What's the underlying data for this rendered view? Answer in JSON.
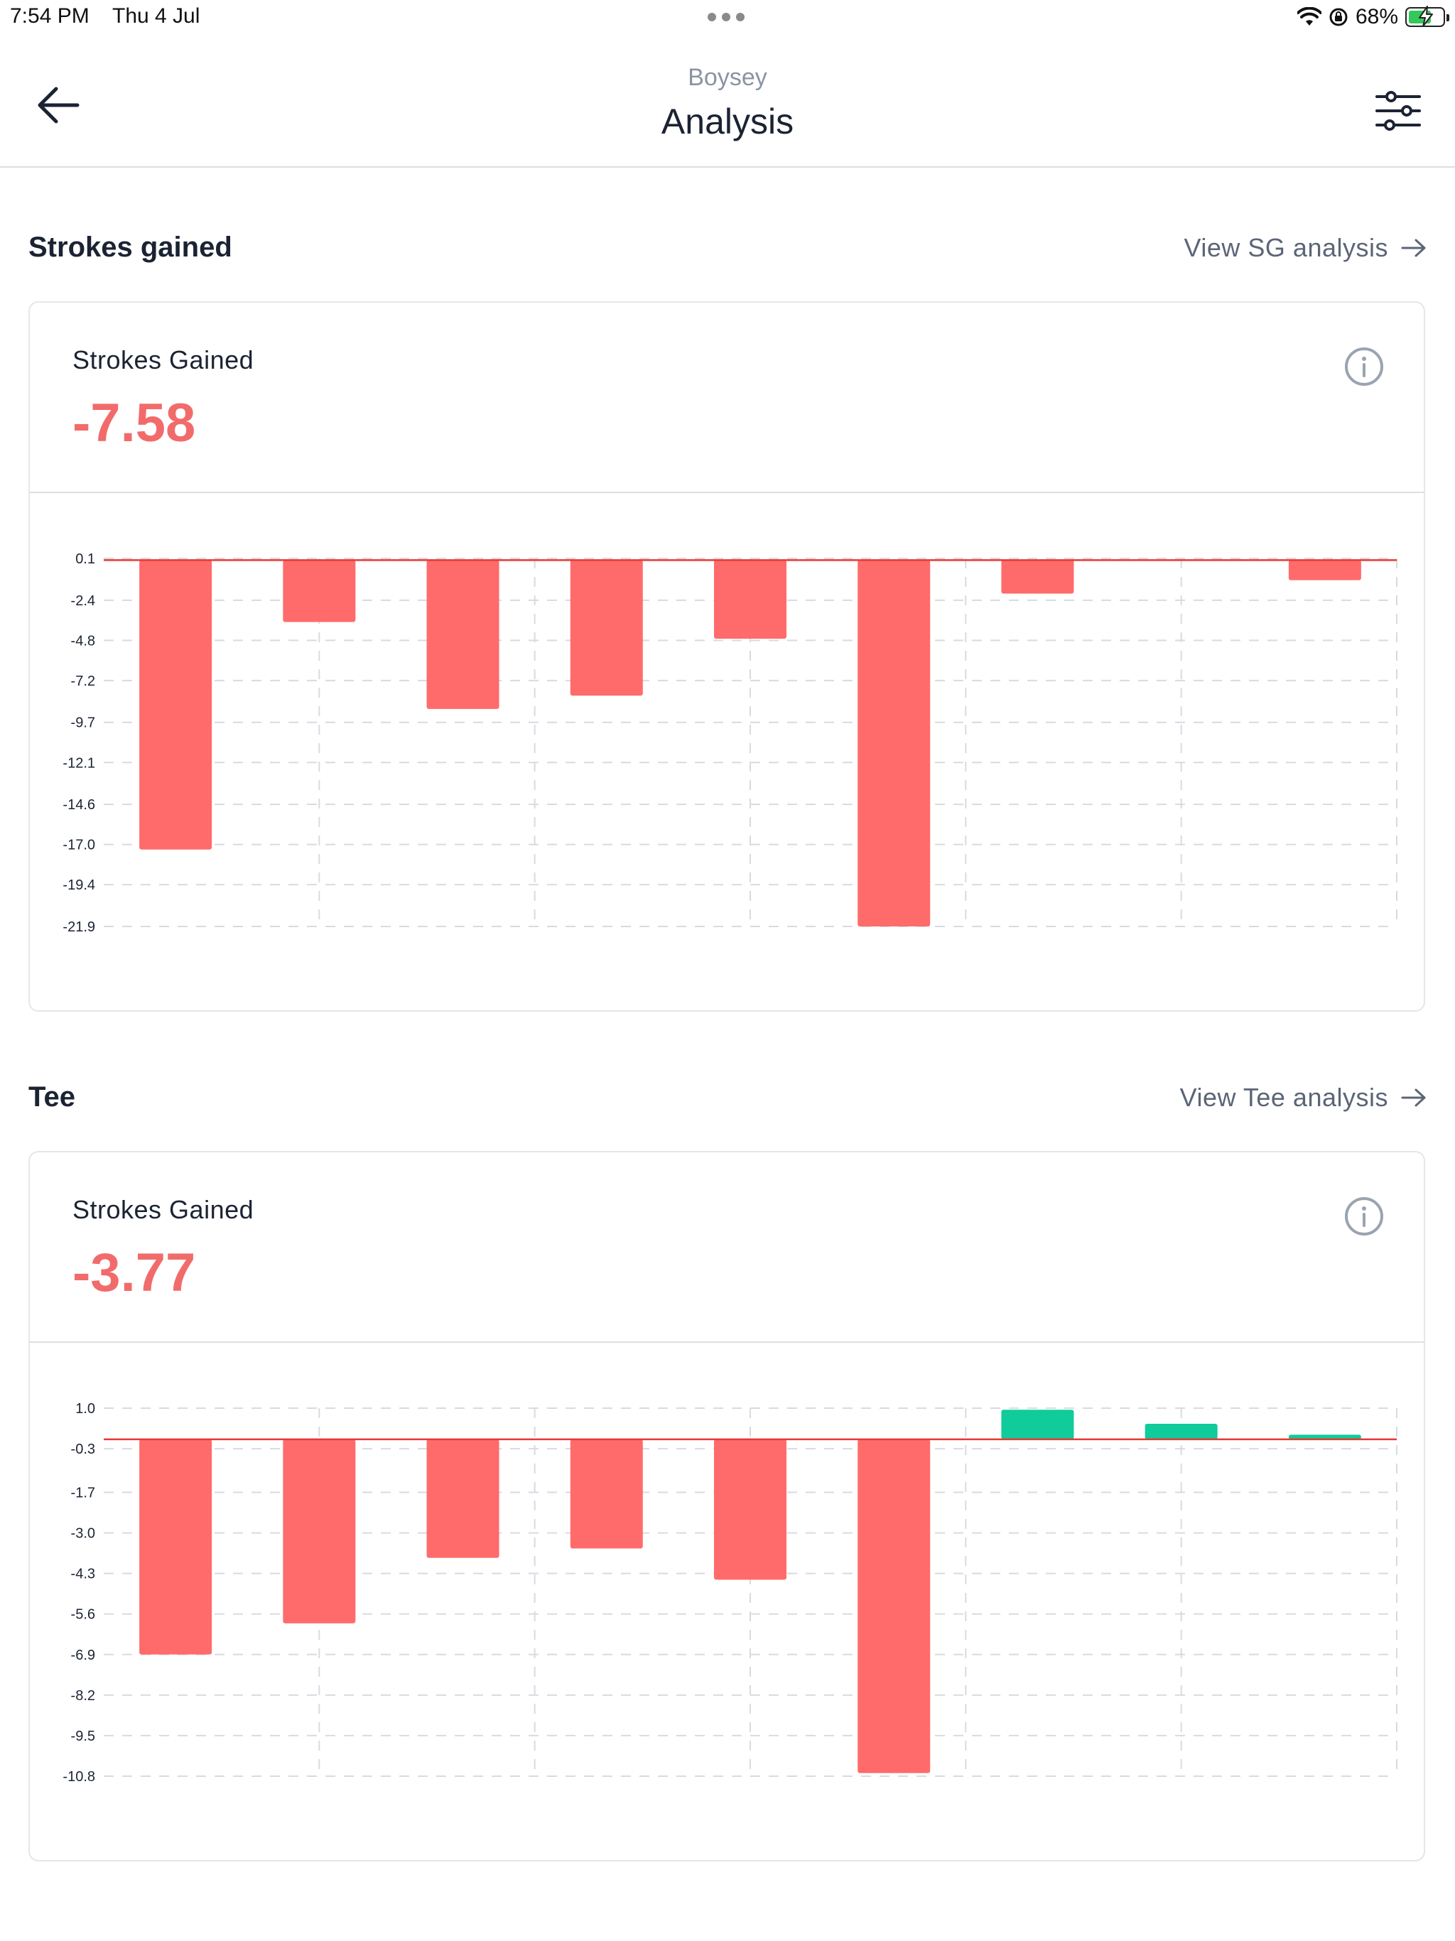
{
  "status_bar": {
    "time": "7:54 PM",
    "date": "Thu 4 Jul",
    "battery_percent": "68%",
    "battery_level": 0.68,
    "icons": [
      "wifi-icon",
      "orientation-lock-icon",
      "battery-charging-icon"
    ]
  },
  "header": {
    "subtitle": "Boysey",
    "title": "Analysis",
    "back_icon": "arrow-left-icon",
    "filter_icon": "sliders-icon"
  },
  "colors": {
    "negative": "#ff6b6b",
    "positive": "#0fcc9a",
    "zero_line": "#e53935",
    "grid": "#d7dbe1",
    "value_text": "#f26b6b"
  },
  "sections": [
    {
      "title": "Strokes gained",
      "link_label": "View SG analysis",
      "metric_label": "Strokes Gained",
      "metric_value": "-7.58"
    },
    {
      "title": "Tee",
      "link_label": "View Tee analysis",
      "metric_label": "Strokes Gained",
      "metric_value": "-3.77"
    }
  ],
  "chart_data": [
    {
      "type": "bar",
      "title": "",
      "xlabel": "",
      "ylabel": "",
      "ylim": [
        -21.9,
        0.1
      ],
      "y_ticks": [
        "0.1",
        "-2.4",
        "-4.8",
        "-7.2",
        "-9.7",
        "-12.1",
        "-14.6",
        "-17.0",
        "-19.4",
        "-21.9"
      ],
      "y_tick_values": [
        0.1,
        -2.4,
        -4.8,
        -7.2,
        -9.7,
        -12.1,
        -14.6,
        -17.0,
        -19.4,
        -21.9
      ],
      "categories": [
        "",
        "",
        "",
        "",
        "",
        "",
        "",
        "",
        ""
      ],
      "values": [
        -17.3,
        -3.7,
        -8.9,
        -8.1,
        -4.7,
        -21.9,
        -2.0,
        0.0,
        -1.2
      ],
      "grid": true
    },
    {
      "type": "bar",
      "title": "",
      "xlabel": "",
      "ylabel": "",
      "ylim": [
        -10.8,
        1.0
      ],
      "y_ticks": [
        "1.0",
        "-0.3",
        "-1.7",
        "-3.0",
        "-4.3",
        "-5.6",
        "-6.9",
        "-8.2",
        "-9.5",
        "-10.8"
      ],
      "y_tick_values": [
        1.0,
        -0.3,
        -1.7,
        -3.0,
        -4.3,
        -5.6,
        -6.9,
        -8.2,
        -9.5,
        -10.8
      ],
      "categories": [
        "",
        "",
        "",
        "",
        "",
        "",
        "",
        "",
        ""
      ],
      "values": [
        -6.9,
        -5.9,
        -3.8,
        -3.5,
        -4.5,
        -10.7,
        0.95,
        0.5,
        0.15
      ],
      "grid": true
    }
  ]
}
